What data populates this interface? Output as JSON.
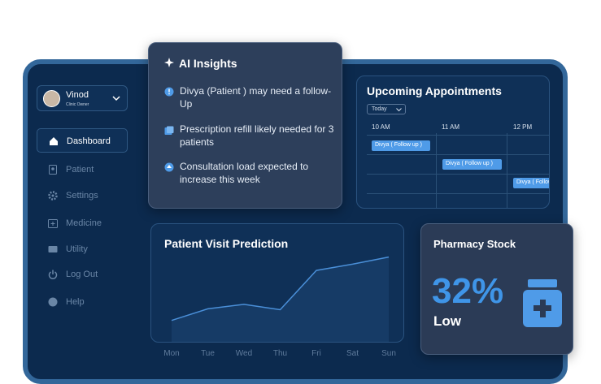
{
  "sidebar": {
    "user": {
      "name": "Vinod",
      "role": "Clinic Owner"
    },
    "nav": [
      "Dashboard",
      "Patient",
      "Settings",
      "Medicine",
      "Utility",
      "Log Out",
      "Help"
    ]
  },
  "ai_insights": {
    "title": "AI Insights",
    "items": [
      "Divya (Patient ) may need a follow-Up",
      "Prescription refill likely needed for 3 patients",
      "Consultation load expected to increase this week"
    ]
  },
  "appointments": {
    "title": "Upcoming Appointments",
    "filter": "Today",
    "times": [
      "10 AM",
      "11 AM",
      "12 PM"
    ],
    "events": [
      "Divya ( Follow up )",
      "Divya ( Follow up )",
      "Divya ( Follow up )"
    ]
  },
  "chart_data": {
    "type": "line",
    "title": "Patient Visit Prediction",
    "categories": [
      "Mon",
      "Tue",
      "Wed",
      "Thu",
      "Fri",
      "Sat",
      "Sun"
    ],
    "values": [
      23,
      36,
      41,
      35,
      79,
      86,
      94
    ],
    "ylim": [
      0,
      100
    ],
    "color": "#4a8fd8"
  },
  "pharmacy": {
    "title": "Pharmacy Stock",
    "percent": "32%",
    "status": "Low"
  }
}
